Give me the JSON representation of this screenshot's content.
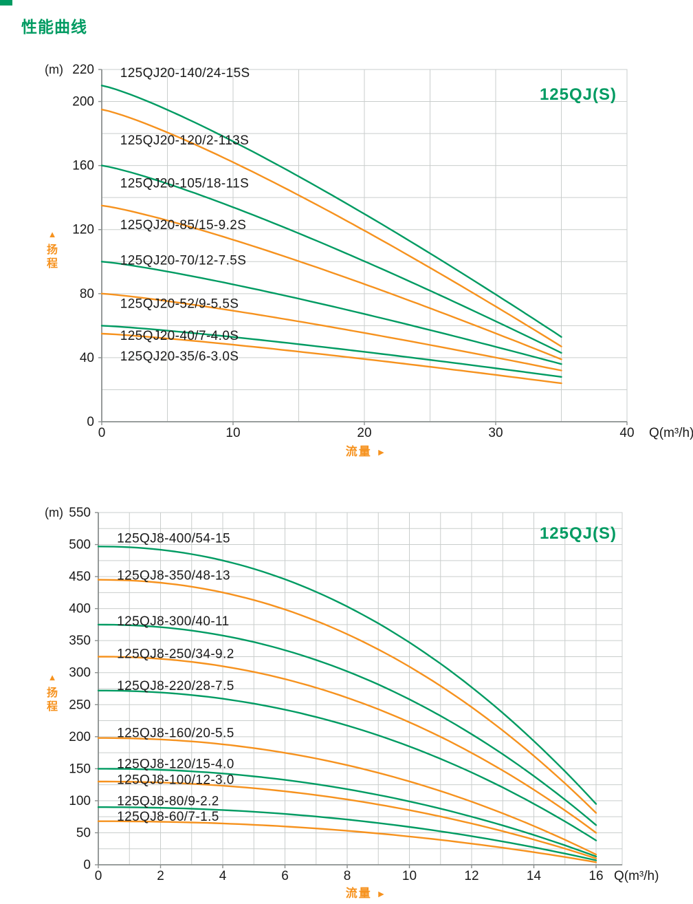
{
  "page": {
    "title": "性能曲线",
    "accent_green": "#009B62",
    "accent_orange": "#F6921E",
    "text_color": "#1A1A1A",
    "grid_color": "#C9CDCC",
    "axis_color": "#8A8F8E"
  },
  "chart_data": [
    {
      "type": "line",
      "title": "125QJ(S)",
      "unit_label": "(m)",
      "y_axis_marker": "▲",
      "y_axis_title": "扬程",
      "x_axis_title": "流量",
      "x_axis_marker": "►",
      "x_unit": "Q(m³/h)",
      "xlim": [
        0,
        40
      ],
      "ylim": [
        0,
        220
      ],
      "x_grid_step": 5,
      "y_grid_step": 20,
      "x_tick_step": 10,
      "y_tick_labels": [
        220,
        200,
        160,
        120,
        80,
        40,
        0
      ],
      "grid": true,
      "legend_position": "none",
      "q_end": 35,
      "curve_exponent": 1.2,
      "label_q": 1.4,
      "series": [
        {
          "label": "125QJ20-140/24-15S",
          "color": "green",
          "h0": 210,
          "h_end": 53,
          "label_h": 218
        },
        {
          "label": "125QJ20-120/2-113S",
          "color": "orange",
          "h0": 195,
          "h_end": 47,
          "label_h": 176
        },
        {
          "label": "125QJ20-105/18-11S",
          "color": "green",
          "h0": 160,
          "h_end": 43,
          "label_h": 149
        },
        {
          "label": "125QJ20-85/15-9.2S",
          "color": "orange",
          "h0": 135,
          "h_end": 39,
          "label_h": 123
        },
        {
          "label": "125QJ20-70/12-7.5S",
          "color": "green",
          "h0": 100,
          "h_end": 36,
          "label_h": 101
        },
        {
          "label": "125QJ20-52/9-5.5S",
          "color": "orange",
          "h0": 80,
          "h_end": 32,
          "label_h": 74
        },
        {
          "label": "125QJ20-40/7-4.0S",
          "color": "green",
          "h0": 60,
          "h_end": 28,
          "label_h": 54
        },
        {
          "label": "125QJ20-35/6-3.0S",
          "color": "orange",
          "h0": 55,
          "h_end": 24,
          "label_h": 41
        }
      ]
    },
    {
      "type": "line",
      "title": "125QJ(S)",
      "unit_label": "(m)",
      "y_axis_marker": "▲",
      "y_axis_title": "扬程",
      "x_axis_title": "流量",
      "x_axis_marker": "►",
      "x_unit": "Q(m³/h)",
      "xlim": [
        0,
        16
      ],
      "ylim": [
        0,
        550
      ],
      "x_grid_step": 1,
      "y_grid_step": 25,
      "x_tick_step": 2,
      "y_tick_labels": [
        550,
        500,
        450,
        400,
        350,
        300,
        250,
        200,
        150,
        100,
        50,
        0
      ],
      "grid": true,
      "legend_position": "none",
      "q_end": 16,
      "curve_exponent": 2.1,
      "label_q": 0.6,
      "series": [
        {
          "label": "125QJ8-400/54-15",
          "color": "green",
          "h0": 497,
          "h_end": 95,
          "label_h": 510
        },
        {
          "label": "125QJ8-350/48-13",
          "color": "orange",
          "h0": 445,
          "h_end": 81,
          "label_h": 452
        },
        {
          "label": "125QJ8-300/40-11",
          "color": "green",
          "h0": 375,
          "h_end": 62,
          "label_h": 381
        },
        {
          "label": "125QJ8-250/34-9.2",
          "color": "orange",
          "h0": 325,
          "h_end": 50,
          "label_h": 330
        },
        {
          "label": "125QJ8-220/28-7.5",
          "color": "green",
          "h0": 272,
          "h_end": 38,
          "label_h": 280
        },
        {
          "label": "125QJ8-160/20-5.5",
          "color": "orange",
          "h0": 198,
          "h_end": 16,
          "label_h": 206
        },
        {
          "label": "125QJ8-120/15-4.0",
          "color": "green",
          "h0": 150,
          "h_end": 13,
          "label_h": 158
        },
        {
          "label": "125QJ8-100/12-3.0",
          "color": "orange",
          "h0": 130,
          "h_end": 10,
          "label_h": 133
        },
        {
          "label": "125QJ8-80/9-2.2",
          "color": "green",
          "h0": 90,
          "h_end": 7,
          "label_h": 100
        },
        {
          "label": "125QJ8-60/7-1.5",
          "color": "orange",
          "h0": 68,
          "h_end": 4,
          "label_h": 76
        }
      ]
    }
  ]
}
